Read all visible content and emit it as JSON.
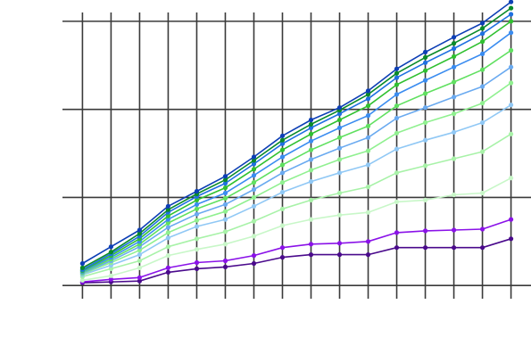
{
  "chart_data": {
    "type": "line",
    "title": "",
    "xlabel": "",
    "ylabel": "",
    "grid": true,
    "legend": "none",
    "x": [
      0,
      1,
      2,
      3,
      4,
      5,
      6,
      7,
      8,
      9,
      10,
      11,
      12,
      13,
      14,
      15
    ],
    "xlim": [
      -0.7,
      15.7
    ],
    "ylim": [
      -0.15,
      3.1
    ],
    "series": [
      {
        "color": "#4a0a8c",
        "values": [
          0.03,
          0.04,
          0.05,
          0.15,
          0.19,
          0.21,
          0.25,
          0.32,
          0.35,
          0.35,
          0.35,
          0.43,
          0.43,
          0.43,
          0.43,
          0.53
        ]
      },
      {
        "color": "#8a12e8",
        "values": [
          0.04,
          0.07,
          0.09,
          0.2,
          0.26,
          0.28,
          0.34,
          0.43,
          0.47,
          0.48,
          0.5,
          0.6,
          0.62,
          0.63,
          0.64,
          0.75
        ]
      },
      {
        "color": "#c8f7c8",
        "values": [
          0.06,
          0.11,
          0.2,
          0.34,
          0.41,
          0.47,
          0.56,
          0.68,
          0.75,
          0.8,
          0.83,
          0.95,
          0.97,
          1.03,
          1.05,
          1.22
        ]
      },
      {
        "color": "#a8f2a8",
        "values": [
          0.1,
          0.19,
          0.28,
          0.44,
          0.53,
          0.61,
          0.73,
          0.87,
          0.97,
          1.05,
          1.12,
          1.28,
          1.36,
          1.44,
          1.52,
          1.72
        ]
      },
      {
        "color": "#90c8f5",
        "values": [
          0.12,
          0.23,
          0.35,
          0.54,
          0.67,
          0.75,
          0.9,
          1.06,
          1.18,
          1.28,
          1.37,
          1.55,
          1.65,
          1.74,
          1.85,
          2.05
        ]
      },
      {
        "color": "#90f090",
        "values": [
          0.13,
          0.26,
          0.4,
          0.6,
          0.74,
          0.84,
          1.0,
          1.17,
          1.31,
          1.43,
          1.53,
          1.73,
          1.85,
          1.95,
          2.07,
          2.3
        ]
      },
      {
        "color": "#6aaaf0",
        "values": [
          0.14,
          0.28,
          0.44,
          0.66,
          0.81,
          0.92,
          1.09,
          1.28,
          1.43,
          1.56,
          1.68,
          1.9,
          2.02,
          2.14,
          2.26,
          2.48
        ]
      },
      {
        "color": "#60e060",
        "values": [
          0.15,
          0.3,
          0.47,
          0.71,
          0.87,
          0.99,
          1.17,
          1.37,
          1.54,
          1.68,
          1.81,
          2.04,
          2.18,
          2.31,
          2.45,
          2.67
        ]
      },
      {
        "color": "#3a8cf0",
        "values": [
          0.16,
          0.32,
          0.5,
          0.75,
          0.92,
          1.05,
          1.25,
          1.46,
          1.64,
          1.79,
          1.93,
          2.17,
          2.33,
          2.48,
          2.63,
          2.87
        ]
      },
      {
        "color": "#30c030",
        "values": [
          0.17,
          0.34,
          0.53,
          0.79,
          0.97,
          1.11,
          1.32,
          1.54,
          1.72,
          1.88,
          2.04,
          2.28,
          2.44,
          2.6,
          2.77,
          3.0
        ]
      },
      {
        "color": "#1f70e0",
        "values": [
          0.18,
          0.36,
          0.56,
          0.83,
          1.01,
          1.16,
          1.38,
          1.61,
          1.79,
          1.95,
          2.12,
          2.36,
          2.53,
          2.69,
          2.86,
          3.08
        ]
      },
      {
        "color": "#0a8a2a",
        "values": [
          0.2,
          0.38,
          0.59,
          0.86,
          1.04,
          1.2,
          1.42,
          1.65,
          1.83,
          1.99,
          2.17,
          2.41,
          2.59,
          2.75,
          2.92,
          3.15
        ]
      },
      {
        "color": "#0d3fb5",
        "values": [
          0.25,
          0.44,
          0.63,
          0.9,
          1.07,
          1.24,
          1.46,
          1.7,
          1.88,
          2.02,
          2.21,
          2.46,
          2.65,
          2.82,
          2.98,
          3.22
        ]
      }
    ]
  }
}
